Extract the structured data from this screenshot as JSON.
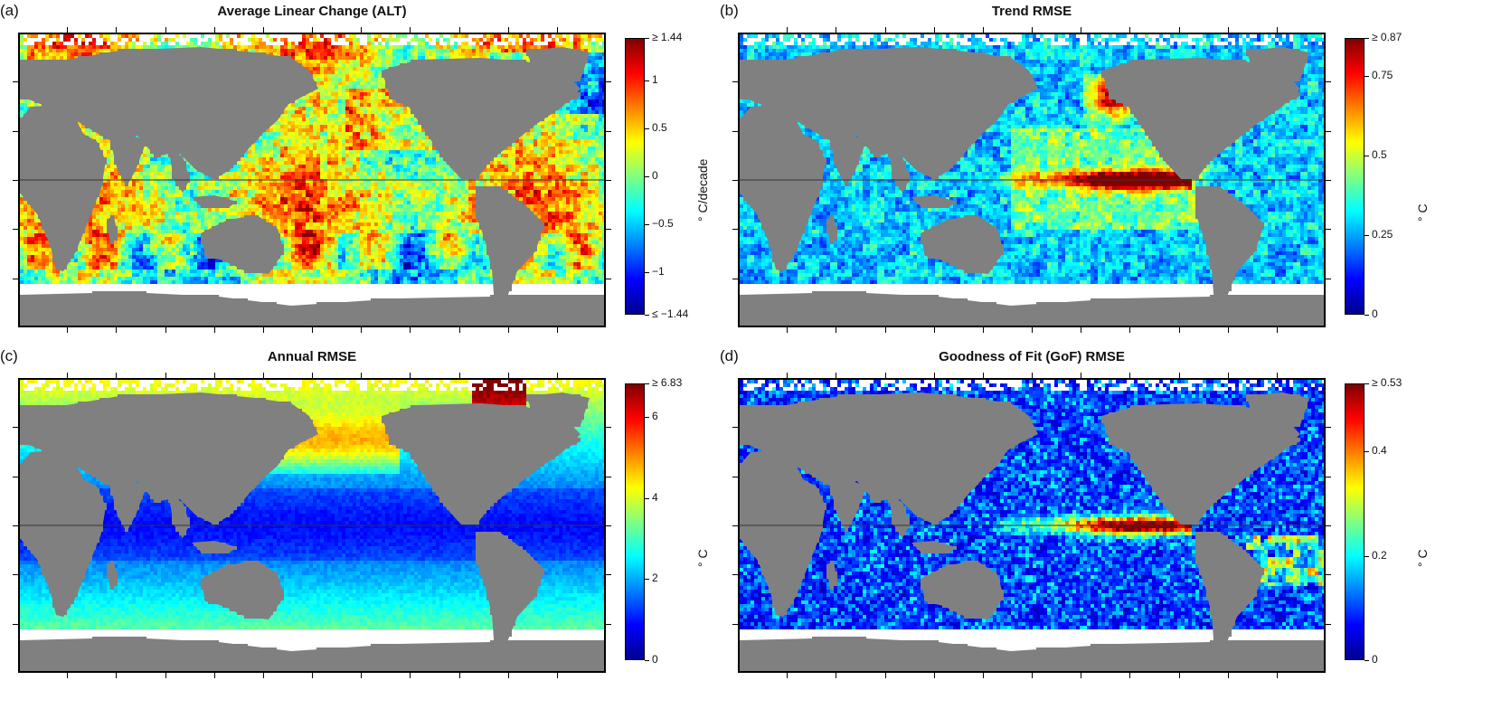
{
  "panels": [
    {
      "id": "a",
      "letter": "(a)",
      "title": "Average Linear Change (ALT)",
      "colorbar": {
        "label": "° C/decade",
        "ticks": [
          "≥ 1.44",
          "1",
          "0.5",
          "0",
          "−0.5",
          "−1",
          "≤ −1.44"
        ],
        "tick_values": [
          1.44,
          1,
          0.5,
          0,
          -0.5,
          -1,
          -1.44
        ],
        "min": -1.44,
        "max": 1.44
      },
      "field_style": "diverging"
    },
    {
      "id": "b",
      "letter": "(b)",
      "title": "Trend RMSE",
      "colorbar": {
        "label": "° C",
        "ticks": [
          "≥ 0.87",
          "0.75",
          "0.5",
          "0.25",
          "0"
        ],
        "tick_values": [
          0.87,
          0.75,
          0.5,
          0.25,
          0
        ],
        "min": 0,
        "max": 0.87
      },
      "field_style": "trend"
    },
    {
      "id": "c",
      "letter": "(c)",
      "title": "Annual RMSE",
      "colorbar": {
        "label": "° C",
        "ticks": [
          "≥ 6.83",
          "6",
          "4",
          "2",
          "0"
        ],
        "tick_values": [
          6.83,
          6,
          4,
          2,
          0
        ],
        "min": 0,
        "max": 6.83
      },
      "field_style": "annual"
    },
    {
      "id": "d",
      "letter": "(d)",
      "title": "Goodness of Fit (GoF) RMSE",
      "colorbar": {
        "label": "° C",
        "ticks": [
          "≥ 0.53",
          "0.4",
          "0.2",
          "0"
        ],
        "tick_values": [
          0.53,
          0.4,
          0.2,
          0
        ],
        "min": 0,
        "max": 0.53
      },
      "field_style": "gof"
    }
  ],
  "colors": {
    "land": "#808080",
    "ice": "#ffffff",
    "colormap": [
      "#00008f",
      "#0000ff",
      "#0080ff",
      "#00ffff",
      "#80ff80",
      "#ffff00",
      "#ff8000",
      "#ff0000",
      "#800000"
    ]
  }
}
